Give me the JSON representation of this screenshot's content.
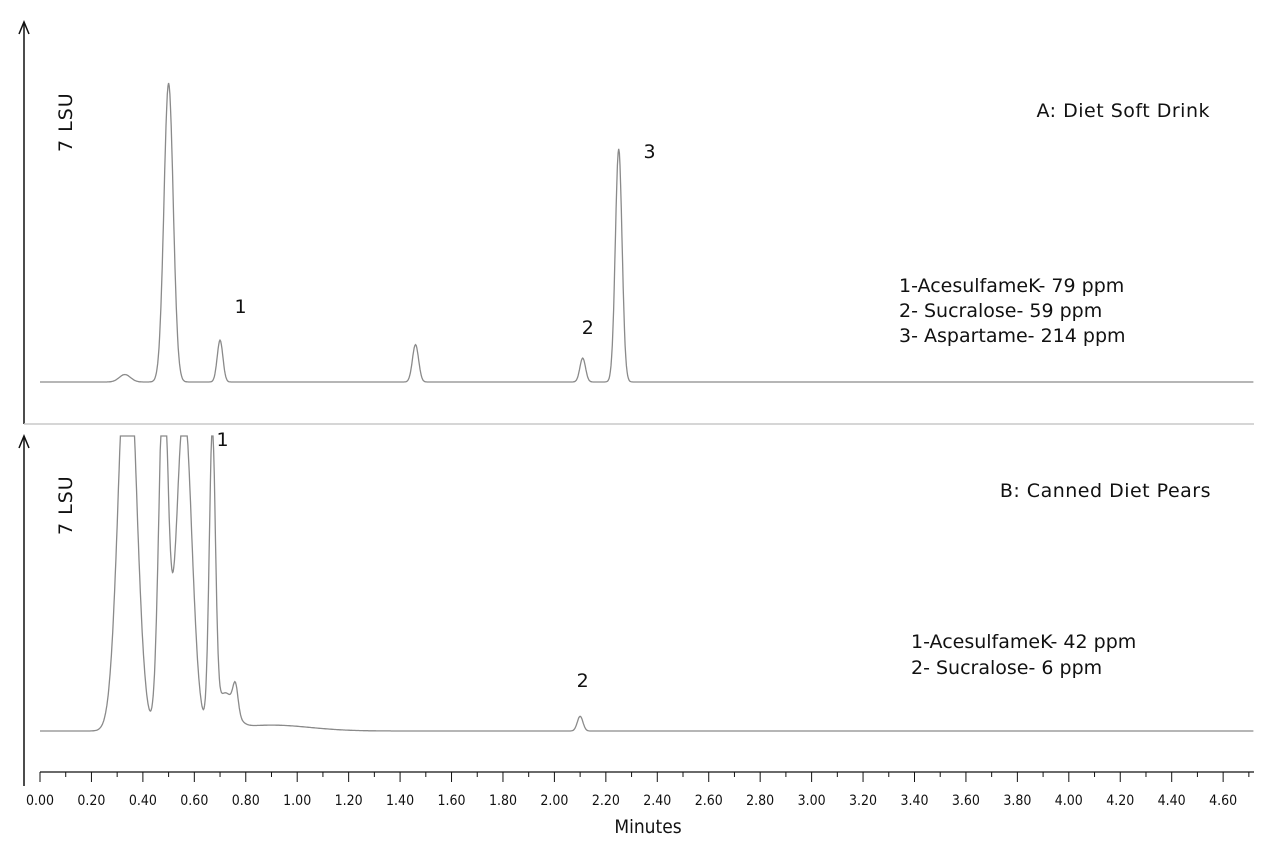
{
  "chart_data": [
    {
      "type": "line",
      "title": "A: Diet Soft Drink",
      "ylabel": "7 LSU",
      "xlabel": "Minutes",
      "xlim": [
        0,
        4.72
      ],
      "baseline": 0,
      "ylim": [
        0,
        1.0
      ],
      "peaks": [
        {
          "rt": 0.33,
          "height": 0.025,
          "width": 0.022
        },
        {
          "rt": 0.5,
          "height": 1.0,
          "width": 0.018
        },
        {
          "rt": 0.7,
          "height": 0.14,
          "width": 0.011
        },
        {
          "rt": 1.46,
          "height": 0.125,
          "width": 0.012
        },
        {
          "rt": 2.11,
          "height": 0.08,
          "width": 0.011
        },
        {
          "rt": 2.25,
          "height": 0.78,
          "width": 0.013
        }
      ],
      "peak_labels": [
        {
          "text": "1",
          "x": 0.78,
          "y": 0.23
        },
        {
          "text": "2",
          "x": 2.13,
          "y": 0.16
        },
        {
          "text": "3",
          "x": 2.37,
          "y": 0.75
        }
      ],
      "legend": [
        "1-AcesulfameK- 79 ppm",
        "2- Sucralose- 59 ppm",
        "3- Aspartame- 214 ppm"
      ]
    },
    {
      "type": "line",
      "title": "B: Canned Diet Pears",
      "ylabel": "7 LSU",
      "xlabel": "Minutes",
      "xlim": [
        0,
        4.72
      ],
      "baseline": 0,
      "ylim": [
        0,
        1.0
      ],
      "peaks": [
        {
          "rt": 0.34,
          "height": 1.4,
          "width": 0.034
        },
        {
          "rt": 0.48,
          "height": 1.2,
          "width": 0.018
        },
        {
          "rt": 0.56,
          "height": 1.1,
          "width": 0.03
        },
        {
          "rt": 0.67,
          "height": 0.98,
          "width": 0.012
        },
        {
          "rt": 0.72,
          "height": 0.12,
          "width": 0.035
        },
        {
          "rt": 0.76,
          "height": 0.09,
          "width": 0.01
        },
        {
          "rt": 0.9,
          "height": 0.02,
          "width": 0.15
        },
        {
          "rt": 2.1,
          "height": 0.05,
          "width": 0.011
        }
      ],
      "peak_labels": [
        {
          "text": "1",
          "x": 0.71,
          "y": 0.97
        },
        {
          "text": "2",
          "x": 2.11,
          "y": 0.15
        }
      ],
      "legend": [
        "1-AcesulfameK- 42 ppm",
        "2- Sucralose- 6 ppm"
      ]
    }
  ],
  "x_ticks": [
    "0.00",
    "0.20",
    "0.40",
    "0.60",
    "0.80",
    "1.00",
    "1.20",
    "1.40",
    "1.60",
    "1.80",
    "2.00",
    "2.20",
    "2.40",
    "2.60",
    "2.80",
    "3.00",
    "3.20",
    "3.40",
    "3.60",
    "3.80",
    "4.00",
    "4.20",
    "4.40",
    "4.60"
  ],
  "colors": {
    "trace": "#8a8a8a",
    "axis": "#111111",
    "separator": "#c8c8c8",
    "text": "#111111"
  }
}
